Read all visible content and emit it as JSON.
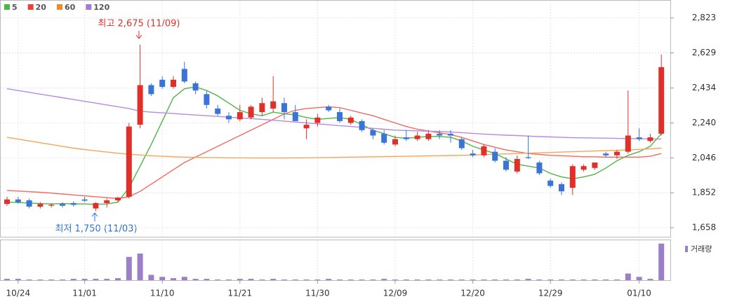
{
  "chart_data": {
    "type": "candlestick",
    "legend": [
      {
        "name": "5",
        "color": "#4fb548"
      },
      {
        "name": "20",
        "color": "#e8423a"
      },
      {
        "name": "60",
        "color": "#f08a2c"
      },
      {
        "name": "120",
        "color": "#a779d6"
      }
    ],
    "annotations": [
      "최고 2,675 (11/09)",
      "최저 1,750 (11/03)"
    ],
    "volume_label": "거래량",
    "categories": [
      null,
      "10/24",
      null,
      null,
      null,
      null,
      null,
      "11/01",
      null,
      null,
      null,
      null,
      null,
      null,
      "11/10",
      null,
      null,
      null,
      null,
      null,
      null,
      "11/21",
      null,
      null,
      null,
      null,
      null,
      null,
      "11/30",
      null,
      null,
      null,
      null,
      null,
      null,
      "12/09",
      null,
      null,
      null,
      null,
      null,
      null,
      "12/20",
      null,
      null,
      null,
      null,
      null,
      null,
      "12/29",
      null,
      null,
      null,
      null,
      null,
      null,
      null,
      "01/10",
      null,
      null
    ],
    "open": [
      1790,
      1815,
      1810,
      1775,
      1780,
      1790,
      1795,
      1815,
      1765,
      1795,
      1810,
      1830,
      2230,
      2450,
      2480,
      2440,
      2540,
      2460,
      2400,
      2320,
      2280,
      2260,
      2270,
      2300,
      2320,
      2350,
      2300,
      2210,
      2240,
      2330,
      2300,
      2240,
      2250,
      2200,
      2180,
      2120,
      2160,
      2150,
      2150,
      2180,
      2180,
      2150,
      2070,
      2060,
      2080,
      2030,
      1970,
      2050,
      2020,
      1920,
      1900,
      1880,
      1980,
      1990,
      2070,
      2060,
      2080,
      2160,
      2140,
      2180
    ],
    "high": [
      1830,
      1830,
      1820,
      1800,
      1795,
      1800,
      1805,
      1830,
      1800,
      1820,
      1830,
      2240,
      2675,
      2460,
      2500,
      2500,
      2580,
      2470,
      2420,
      2340,
      2300,
      2340,
      2340,
      2380,
      2500,
      2380,
      2340,
      2260,
      2290,
      2340,
      2320,
      2280,
      2260,
      2210,
      2200,
      2170,
      2200,
      2190,
      2200,
      2200,
      2200,
      2160,
      2090,
      2120,
      2100,
      2050,
      2060,
      2170,
      2030,
      1930,
      1910,
      2010,
      2010,
      2020,
      2080,
      2090,
      2420,
      2210,
      2180,
      2620
    ],
    "low": [
      1780,
      1790,
      1765,
      1765,
      1770,
      1770,
      1775,
      1800,
      1750,
      1770,
      1800,
      1820,
      2210,
      2390,
      2430,
      2430,
      2460,
      2400,
      2320,
      2280,
      2240,
      2250,
      2260,
      2280,
      2300,
      2260,
      2250,
      2150,
      2220,
      2300,
      2240,
      2230,
      2190,
      2150,
      2120,
      2110,
      2140,
      2140,
      2140,
      2150,
      2130,
      2090,
      2050,
      2050,
      2020,
      1970,
      1960,
      2040,
      1950,
      1880,
      1840,
      1840,
      1970,
      1980,
      2050,
      2040,
      2070,
      2140,
      2130,
      2170
    ],
    "close": [
      1815,
      1800,
      1775,
      1790,
      1785,
      1780,
      1785,
      1808,
      1795,
      1810,
      1825,
      2220,
      2450,
      2400,
      2440,
      2480,
      2470,
      2420,
      2340,
      2290,
      2260,
      2300,
      2330,
      2350,
      2360,
      2300,
      2250,
      2230,
      2270,
      2310,
      2250,
      2270,
      2200,
      2170,
      2130,
      2150,
      2150,
      2170,
      2180,
      2170,
      2170,
      2100,
      2060,
      2110,
      2030,
      1980,
      2040,
      2045,
      1960,
      1890,
      1860,
      2000,
      2000,
      2020,
      2060,
      2080,
      2170,
      2150,
      2160,
      2550
    ],
    "volume": [
      2,
      2,
      1,
      1,
      1,
      1,
      2,
      2,
      2,
      2,
      3,
      35,
      40,
      8,
      5,
      3,
      5,
      2,
      2,
      1,
      1,
      2,
      2,
      1,
      2,
      1,
      1,
      1,
      1,
      2,
      1,
      1,
      1,
      1,
      2,
      1,
      1,
      1,
      1,
      1,
      1,
      1,
      1,
      1,
      1,
      1,
      1,
      2,
      1,
      1,
      1,
      1,
      1,
      1,
      1,
      1,
      10,
      5,
      2,
      55
    ],
    "up_color": "#e0302a",
    "down_color": "#3a74d6",
    "volume_color": "#9b7fc8",
    "series": [
      {
        "name": "5",
        "color": "#4fb548",
        "values": [
          1800,
          1798,
          1795,
          1792,
          1790,
          1792,
          1790,
          1790,
          1788,
          1790,
          1800,
          1880,
          2000,
          2120,
          2250,
          2380,
          2430,
          2440,
          2420,
          2390,
          2350,
          2310,
          2290,
          2280,
          2300,
          2290,
          2285,
          2270,
          2260,
          2265,
          2270,
          2260,
          2230,
          2200,
          2180,
          2160,
          2155,
          2160,
          2165,
          2165,
          2160,
          2140,
          2110,
          2090,
          2070,
          2040,
          2010,
          2000,
          1990,
          1960,
          1940,
          1930,
          1940,
          1955,
          1990,
          2030,
          2060,
          2080,
          2110,
          2180
        ]
      },
      {
        "name": "20",
        "color": "#f26a62",
        "values": [
          1865,
          1862,
          1858,
          1855,
          1850,
          1845,
          1840,
          1835,
          1830,
          1825,
          1820,
          1830,
          1860,
          1900,
          1940,
          1980,
          2020,
          2050,
          2080,
          2110,
          2140,
          2170,
          2200,
          2230,
          2260,
          2290,
          2310,
          2320,
          2325,
          2330,
          2325,
          2310,
          2295,
          2280,
          2260,
          2240,
          2220,
          2205,
          2195,
          2185,
          2175,
          2160,
          2140,
          2120,
          2105,
          2090,
          2080,
          2070,
          2065,
          2060,
          2058,
          2055,
          2052,
          2052,
          2050,
          2050,
          2050,
          2050,
          2055,
          2070
        ]
      },
      {
        "name": "60",
        "color": "#f5a55a",
        "values": [
          2160,
          2150,
          2140,
          2130,
          2120,
          2110,
          2100,
          2092,
          2085,
          2078,
          2072,
          2066,
          2062,
          2058,
          2055,
          2052,
          2050,
          2049,
          2048,
          2047,
          2046,
          2046,
          2045,
          2045,
          2045,
          2045,
          2046,
          2046,
          2047,
          2048,
          2049,
          2050,
          2051,
          2052,
          2053,
          2054,
          2055,
          2056,
          2057,
          2058,
          2059,
          2060,
          2062,
          2064,
          2066,
          2068,
          2070,
          2072,
          2074,
          2076,
          2078,
          2080,
          2082,
          2084,
          2086,
          2088,
          2090,
          2093,
          2096,
          2100
        ]
      },
      {
        "name": "120",
        "color": "#b68be0",
        "values": [
          2430,
          2420,
          2410,
          2400,
          2390,
          2380,
          2370,
          2360,
          2350,
          2340,
          2330,
          2320,
          2305,
          2300,
          2296,
          2292,
          2288,
          2284,
          2280,
          2276,
          2272,
          2268,
          2264,
          2260,
          2255,
          2250,
          2245,
          2240,
          2235,
          2230,
          2225,
          2220,
          2215,
          2210,
          2205,
          2200,
          2198,
          2196,
          2194,
          2192,
          2190,
          2186,
          2182,
          2178,
          2175,
          2172,
          2170,
          2167,
          2164,
          2162,
          2160,
          2158,
          2157,
          2156,
          2155,
          2154,
          2153,
          2152,
          2151,
          2150
        ]
      }
    ],
    "ylim": [
      1600,
      2880
    ],
    "yticks": [
      {
        "value": 1658,
        "label": "1,658"
      },
      {
        "value": 1852,
        "label": "1,852"
      },
      {
        "value": 2046,
        "label": "2,046"
      },
      {
        "value": 2240,
        "label": "2,240"
      },
      {
        "value": 2434,
        "label": "2,434"
      },
      {
        "value": 2629,
        "label": "2,629"
      },
      {
        "value": 2823,
        "label": "2,823"
      }
    ],
    "vlim": [
      0,
      60
    ],
    "grid": true
  }
}
